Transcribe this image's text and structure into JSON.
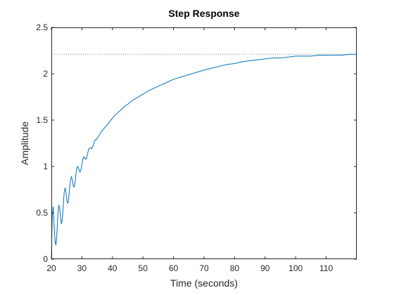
{
  "colors": {
    "series": "#0072BD",
    "axes": "#262626",
    "steady_state_line": "#808080",
    "background": "#FFFFFF"
  },
  "chart_data": {
    "type": "line",
    "title": "Step Response",
    "xlabel": "Time (seconds)",
    "ylabel": "Amplitude",
    "xlim": [
      20,
      120
    ],
    "ylim": [
      0,
      2.5
    ],
    "xticks": [
      20,
      30,
      40,
      50,
      60,
      70,
      80,
      90,
      100,
      110
    ],
    "xtick_labels": [
      "20",
      "30",
      "40",
      "50",
      "60",
      "70",
      "80",
      "90",
      "100",
      "110"
    ],
    "yticks": [
      0,
      0.5,
      1,
      1.5,
      2,
      2.5
    ],
    "ytick_labels": [
      "0",
      "0.5",
      "1",
      "1.5",
      "2",
      "2.5"
    ],
    "grid": false,
    "box": true,
    "steady_state": 2.21,
    "series": [
      {
        "x": [
          20.0,
          20.3,
          20.6,
          20.9,
          21.2,
          21.5,
          21.8,
          22.1,
          22.4,
          22.7,
          23.0,
          23.3,
          23.6,
          23.9,
          24.2,
          24.5,
          24.8,
          25.1,
          25.4,
          25.7,
          26.0,
          26.3,
          26.6,
          26.9,
          27.2,
          27.5,
          27.8,
          28.1,
          28.4,
          28.7,
          29.0,
          29.3,
          29.6,
          29.9,
          30.2,
          30.5,
          30.8,
          31.1,
          31.4,
          31.7,
          32.0,
          32.3,
          32.6,
          32.9,
          33.2,
          33.5,
          33.8,
          34.1,
          34.4,
          34.7,
          35.0,
          35.5,
          36.0,
          36.5,
          37.0,
          37.5,
          38.0,
          38.5,
          39.0,
          39.5,
          40.0,
          40.5,
          41.0,
          41.5,
          42.0,
          42.5,
          43.0,
          43.5,
          44.0,
          44.5,
          45.0,
          46.0,
          47.0,
          48.0,
          49.0,
          50.0,
          52.0,
          54.0,
          56.0,
          58.0,
          60.0,
          62.0,
          64.0,
          66.0,
          68.0,
          70.0,
          72.5,
          75.0,
          77.5,
          80.0,
          82.5,
          85.0,
          87.5,
          90.0,
          92.5,
          95.0,
          97.5,
          100.0,
          102.5,
          105.0,
          107.5,
          110.0,
          112.5,
          115.0,
          117.5,
          120.0
        ],
        "y": [
          0.0,
          0.47,
          0.57,
          0.37,
          0.19,
          0.15,
          0.27,
          0.46,
          0.58,
          0.56,
          0.45,
          0.38,
          0.43,
          0.58,
          0.72,
          0.77,
          0.72,
          0.63,
          0.6,
          0.66,
          0.77,
          0.86,
          0.89,
          0.85,
          0.79,
          0.78,
          0.84,
          0.93,
          0.99,
          1.0,
          0.97,
          0.94,
          0.95,
          1.0,
          1.06,
          1.1,
          1.1,
          1.08,
          1.08,
          1.11,
          1.16,
          1.19,
          1.2,
          1.2,
          1.19,
          1.21,
          1.24,
          1.27,
          1.29,
          1.29,
          1.3,
          1.33,
          1.36,
          1.38,
          1.4,
          1.42,
          1.44,
          1.46,
          1.48,
          1.5,
          1.52,
          1.54,
          1.56,
          1.57,
          1.59,
          1.6,
          1.62,
          1.63,
          1.65,
          1.66,
          1.67,
          1.7,
          1.72,
          1.74,
          1.76,
          1.78,
          1.82,
          1.85,
          1.88,
          1.91,
          1.94,
          1.96,
          1.98,
          2.0,
          2.02,
          2.04,
          2.06,
          2.08,
          2.1,
          2.11,
          2.13,
          2.14,
          2.15,
          2.16,
          2.17,
          2.17,
          2.18,
          2.19,
          2.19,
          2.19,
          2.2,
          2.2,
          2.2,
          2.2,
          2.21,
          2.21
        ]
      }
    ]
  }
}
